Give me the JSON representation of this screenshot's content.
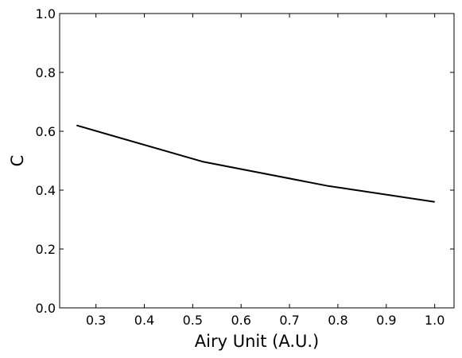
{
  "chart_data": {
    "type": "line",
    "title": "",
    "xlabel": "Airy Unit (A.U.)",
    "ylabel": "C",
    "xlim": [
      0.225,
      1.04
    ],
    "ylim": [
      0.0,
      1.0
    ],
    "xticks": [
      0.3,
      0.4,
      0.5,
      0.6,
      0.7,
      0.8,
      0.9,
      1.0
    ],
    "xtick_labels": [
      "0.3",
      "0.4",
      "0.5",
      "0.6",
      "0.7",
      "0.8",
      "0.9",
      "1.0"
    ],
    "yticks": [
      0.0,
      0.2,
      0.4,
      0.6,
      0.8,
      1.0
    ],
    "ytick_labels": [
      "0.0",
      "0.2",
      "0.4",
      "0.6",
      "0.8",
      "1.0"
    ],
    "grid": false,
    "legend": false,
    "series": [
      {
        "color": "#000000",
        "x": [
          0.26,
          0.52,
          0.78,
          1.0
        ],
        "y": [
          0.62,
          0.497,
          0.414,
          0.36
        ]
      }
    ]
  }
}
